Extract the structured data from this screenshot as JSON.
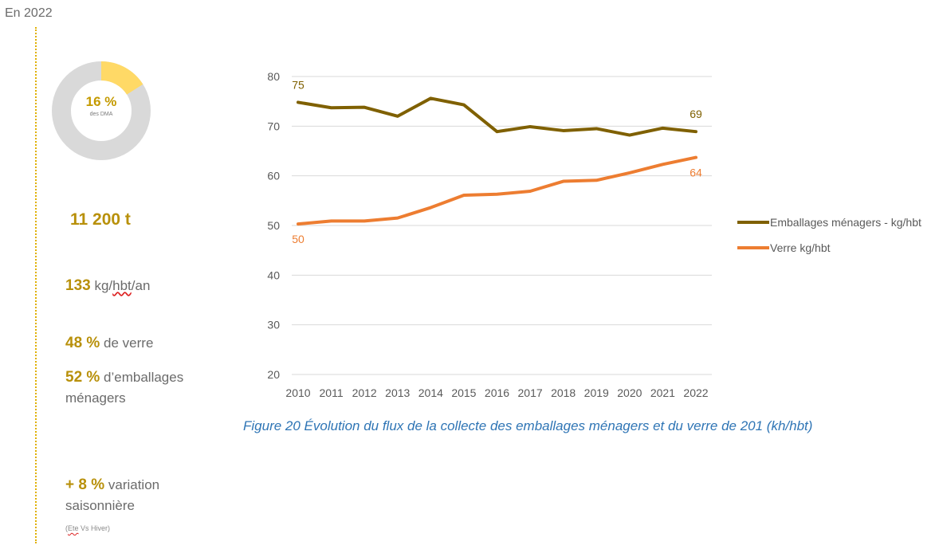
{
  "header": {
    "year": "En 2022"
  },
  "donut": {
    "percent": "16 %",
    "sub": "des DMA",
    "fraction": 0.16,
    "accent": "#ffd966",
    "track": "#d9d9d9"
  },
  "stats": {
    "tonnage": "11 200 t",
    "per_capita_value": "133",
    "per_capita_unit_a": "kg/",
    "per_capita_unit_b": "hbt",
    "per_capita_unit_c": "/an",
    "glass_value": "48 %",
    "glass_label": "de verre",
    "packaging_value": "52 %",
    "packaging_label_1": "d’emballages",
    "packaging_label_2": "ménagers",
    "seasonal_value": "+ 8 %",
    "seasonal_label_1": "variation",
    "seasonal_label_2": "saisonnière",
    "seasonal_note_a": "(",
    "seasonal_note_b": "Ete",
    "seasonal_note_c": " Vs Hiver)"
  },
  "caption": "Figure 20 Évolution du flux de la collecte des emballages ménagers et du verre de 201 (kh/hbt)",
  "chart_data": {
    "type": "line",
    "categories": [
      "2010",
      "2011",
      "2012",
      "2013",
      "2014",
      "2015",
      "2016",
      "2017",
      "2018",
      "2019",
      "2020",
      "2021",
      "2022"
    ],
    "ylim": [
      20,
      80
    ],
    "yticks": [
      20,
      30,
      40,
      50,
      60,
      70,
      80
    ],
    "grid": true,
    "legend_position": "right",
    "series": [
      {
        "name": "Emballages ménagers - kg/hbt",
        "color": "#7f6000",
        "values": [
          74.8,
          73.7,
          73.8,
          72.0,
          75.6,
          74.3,
          68.9,
          69.9,
          69.1,
          69.5,
          68.2,
          69.6,
          68.9
        ],
        "labels": [
          {
            "index": 0,
            "text": "75"
          },
          {
            "index": 12,
            "text": "69"
          }
        ]
      },
      {
        "name": "Verre kg/hbt",
        "color": "#ed7d31",
        "values": [
          50.3,
          50.9,
          50.9,
          51.5,
          53.6,
          56.1,
          56.3,
          56.9,
          58.9,
          59.1,
          60.6,
          62.3,
          63.7
        ],
        "labels": [
          {
            "index": 0,
            "text": "50"
          },
          {
            "index": 12,
            "text": "64"
          }
        ]
      }
    ]
  }
}
